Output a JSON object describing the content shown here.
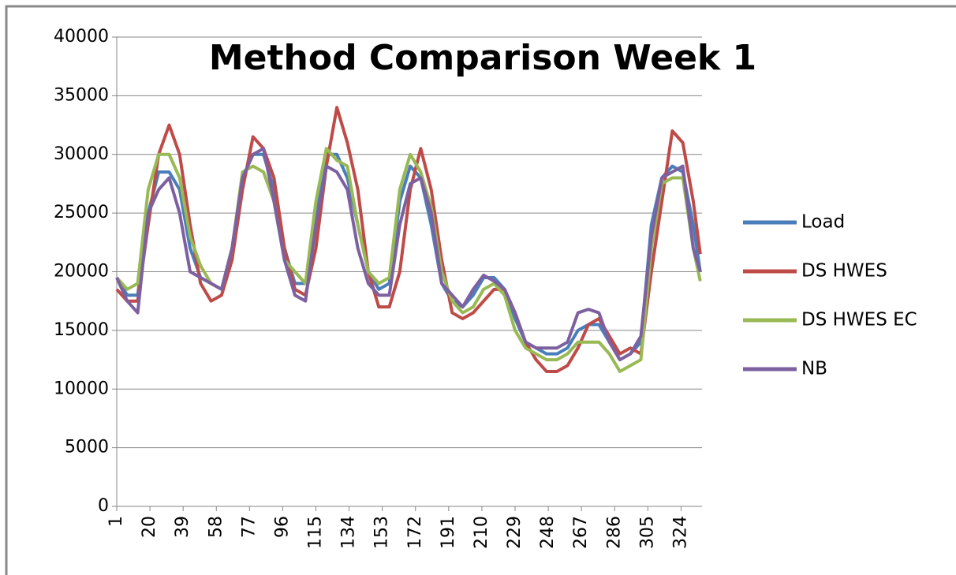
{
  "chart_data": {
    "type": "line",
    "title": "Method Comparison Week 1",
    "x": [
      1,
      7,
      13,
      19,
      25,
      31,
      37,
      43,
      49,
      55,
      61,
      67,
      73,
      79,
      85,
      91,
      97,
      103,
      109,
      115,
      121,
      127,
      133,
      139,
      145,
      151,
      157,
      163,
      169,
      175,
      181,
      187,
      193,
      199,
      205,
      211,
      217,
      223,
      229,
      235,
      241,
      247,
      253,
      259,
      265,
      271,
      277,
      283,
      289,
      295,
      301,
      307,
      313,
      319,
      325,
      331,
      335
    ],
    "xlim": [
      1,
      336
    ],
    "xticks": [
      1,
      20,
      39,
      58,
      77,
      96,
      115,
      134,
      153,
      172,
      191,
      210,
      229,
      248,
      267,
      286,
      305,
      324
    ],
    "ylim": [
      0,
      40000
    ],
    "yticks": [
      0,
      5000,
      10000,
      15000,
      20000,
      25000,
      30000,
      35000,
      40000
    ],
    "grid": true,
    "legend": "right",
    "series": [
      {
        "name": "Load",
        "color": "#4a7ebb",
        "values": [
          19500,
          18000,
          18000,
          25000,
          28500,
          28500,
          27000,
          22000,
          19500,
          19000,
          18500,
          22000,
          28000,
          30000,
          30000,
          27000,
          22000,
          19000,
          19000,
          25000,
          30000,
          30000,
          28000,
          24000,
          20000,
          18500,
          19000,
          26000,
          29000,
          28000,
          24000,
          19000,
          17500,
          17000,
          18000,
          19500,
          19500,
          18500,
          16000,
          14000,
          13500,
          13000,
          13000,
          13500,
          15000,
          15500,
          15500,
          14000,
          12500,
          13000,
          14000,
          24000,
          28000,
          29000,
          28500,
          24000,
          20000
        ]
      },
      {
        "name": "DS HWES",
        "color": "#be4b48",
        "values": [
          18500,
          17500,
          17500,
          24000,
          30000,
          32500,
          30000,
          24000,
          19000,
          17500,
          18000,
          21000,
          27000,
          31500,
          30500,
          28000,
          22000,
          18500,
          18000,
          22000,
          29000,
          34000,
          31000,
          27000,
          20000,
          17000,
          17000,
          20000,
          27000,
          30500,
          27000,
          21000,
          16500,
          16000,
          16500,
          17500,
          18500,
          18500,
          16500,
          14000,
          12500,
          11500,
          11500,
          12000,
          13500,
          15500,
          16000,
          14500,
          13000,
          13500,
          13000,
          20000,
          26000,
          32000,
          31000,
          26000,
          21500
        ]
      },
      {
        "name": "DS HWES EC",
        "color": "#98b954",
        "values": [
          19500,
          18500,
          19000,
          27000,
          30000,
          30000,
          28000,
          23000,
          20500,
          19000,
          18500,
          22000,
          28500,
          29000,
          28500,
          26000,
          21000,
          20000,
          19000,
          26000,
          30500,
          29500,
          29000,
          24000,
          20000,
          19000,
          19500,
          27000,
          30000,
          28500,
          25500,
          20000,
          17500,
          16500,
          17000,
          18500,
          19000,
          18000,
          15000,
          13500,
          13000,
          12500,
          12500,
          13000,
          14000,
          14000,
          14000,
          13000,
          11500,
          12000,
          12500,
          22000,
          27500,
          28000,
          28000,
          22000,
          19200
        ]
      },
      {
        "name": "NB",
        "color": "#7d60a0",
        "values": [
          19500,
          17500,
          16500,
          25000,
          27000,
          28000,
          25000,
          20000,
          19500,
          19000,
          18500,
          22000,
          28000,
          30000,
          30500,
          26000,
          21000,
          18000,
          17500,
          24000,
          29000,
          28500,
          27000,
          22000,
          19000,
          18000,
          18000,
          24000,
          27500,
          28000,
          25000,
          19000,
          18000,
          17000,
          18500,
          19700,
          19200,
          18500,
          16500,
          14000,
          13500,
          13500,
          13500,
          14000,
          16500,
          16800,
          16500,
          14000,
          12500,
          13000,
          14500,
          23000,
          28000,
          28500,
          29000,
          22000,
          20000
        ]
      }
    ]
  }
}
